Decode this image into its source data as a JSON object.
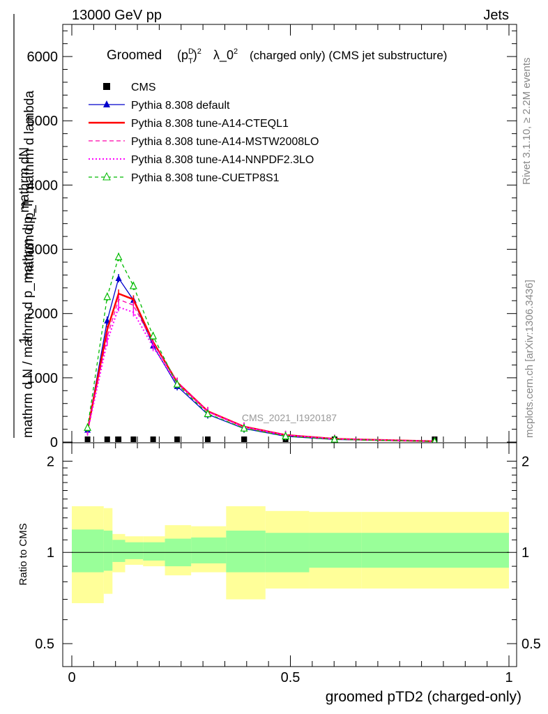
{
  "header": {
    "left": "13000 GeV pp",
    "right": "Jets"
  },
  "side_labels": {
    "rivet": "Rivet 3.1.10, ≥ 2.2M events",
    "mcplots": "mcplots.cern.ch [arXiv:1306.3436]"
  },
  "watermark": "CMS_2021_I1920187",
  "chart_data": [
    {
      "id": "main",
      "type": "line",
      "title": "Groomed (p_T^D)^2 λ_0^2 (charged only) (CMS jet substructure)",
      "title_parts": {
        "pre": "Groomed",
        "tail": "λ_0",
        "rest": "(charged only) (CMS jet substructure)"
      },
      "ylabel_lines": [
        "mathrm dN",
        "1",
        "mathrm d p_T  mathrm d lambda",
        "mathrm d N / mathrm d p_mathrm d p_T"
      ],
      "xlim": [
        0,
        1
      ],
      "ylim": [
        0,
        6500
      ],
      "yticks": [
        0,
        1000,
        2000,
        3000,
        4000,
        5000,
        6000
      ],
      "x": [
        0.036,
        0.081,
        0.107,
        0.141,
        0.186,
        0.241,
        0.311,
        0.394,
        0.489,
        0.601,
        0.83
      ],
      "legend_position": "top-left",
      "series": [
        {
          "name": "CMS",
          "style": "data",
          "color": "#000000",
          "values": [
            0,
            0,
            0,
            0,
            0,
            0,
            0,
            0,
            0,
            0,
            0
          ]
        },
        {
          "name": "Pythia 8.308 default",
          "style": "solid-triangle",
          "color": "#0000cc",
          "values": [
            190,
            1890,
            2550,
            2210,
            1500,
            870,
            430,
            210,
            90,
            40,
            10
          ]
        },
        {
          "name": "Pythia 8.308 tune-A14-CTEQL1",
          "style": "solid-thick",
          "color": "#ff0000",
          "values": [
            180,
            1750,
            2310,
            2220,
            1560,
            930,
            480,
            240,
            110,
            50,
            12
          ]
        },
        {
          "name": "Pythia 8.308 tune-A14-MSTW2008LO",
          "style": "dashed",
          "color": "#ff00aa",
          "values": [
            175,
            1640,
            2220,
            2130,
            1540,
            940,
            480,
            240,
            110,
            50,
            12
          ]
        },
        {
          "name": "Pythia 8.308 tune-A14-NNPDF2.3LO",
          "style": "dotted",
          "color": "#ff00ff",
          "values": [
            165,
            1560,
            2100,
            2020,
            1480,
            910,
            470,
            235,
            108,
            48,
            12
          ]
        },
        {
          "name": "Pythia 8.308 tune-CUETP8S1",
          "style": "dashed-triangle",
          "color": "#00bb00",
          "values": [
            225,
            2260,
            2880,
            2430,
            1650,
            900,
            440,
            215,
            92,
            42,
            10
          ]
        }
      ]
    },
    {
      "id": "ratio",
      "type": "area",
      "ylabel": "Ratio to CMS",
      "xlabel": "groomed pTD2 (charged-only)",
      "xlim": [
        0,
        1
      ],
      "ylim": [
        0.42,
        2.3
      ],
      "yticks": [
        0.5,
        1,
        2
      ],
      "ytick_labels": [
        "0.5",
        "1",
        "2"
      ],
      "xticks": [
        0,
        0.5,
        1
      ],
      "xtick_labels": [
        "0",
        "0.5",
        "1"
      ],
      "bin_edges": [
        0,
        0.073,
        0.093,
        0.122,
        0.163,
        0.213,
        0.273,
        0.353,
        0.443,
        0.543,
        0.663,
        1.0
      ],
      "band_inner": {
        "color": "#99ff99",
        "low": [
          0.86,
          0.87,
          0.93,
          0.95,
          0.94,
          0.9,
          0.92,
          0.86,
          0.86,
          0.89,
          0.89
        ],
        "high": [
          1.19,
          1.18,
          1.1,
          1.08,
          1.08,
          1.11,
          1.12,
          1.18,
          1.16,
          1.16,
          1.16
        ]
      },
      "band_outer": {
        "color": "#ffff99",
        "low": [
          0.68,
          0.73,
          0.86,
          0.91,
          0.9,
          0.84,
          0.86,
          0.7,
          0.76,
          0.76,
          0.76
        ],
        "high": [
          1.42,
          1.4,
          1.15,
          1.13,
          1.13,
          1.23,
          1.22,
          1.42,
          1.37,
          1.36,
          1.36
        ]
      }
    }
  ]
}
